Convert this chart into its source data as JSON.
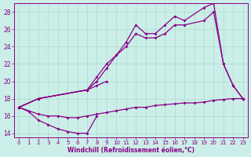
{
  "xlabel": "Windchill (Refroidissement éolien,°C)",
  "background_color": "#cceee8",
  "line_color": "#880088",
  "grid_color": "#aaddcc",
  "xlim": [
    -0.5,
    23.5
  ],
  "ylim": [
    13.5,
    29.0
  ],
  "xticks": [
    0,
    1,
    2,
    3,
    4,
    5,
    6,
    7,
    8,
    9,
    10,
    11,
    12,
    13,
    14,
    15,
    16,
    17,
    18,
    19,
    20,
    21,
    22,
    23
  ],
  "yticks": [
    14,
    16,
    18,
    20,
    22,
    24,
    26,
    28
  ],
  "series": [
    {
      "x": [
        0,
        1,
        2,
        3,
        4,
        5,
        6,
        7,
        8
      ],
      "y": [
        17,
        16.5,
        15.5,
        15,
        14.5,
        14.2,
        14,
        14,
        16
      ]
    },
    {
      "x": [
        0,
        2,
        3,
        4,
        5,
        6,
        7,
        8,
        9,
        10,
        11,
        12,
        13,
        14,
        15,
        16,
        17,
        18,
        19,
        20,
        21,
        22,
        23
      ],
      "y": [
        17,
        16.2,
        16,
        16,
        15.8,
        15.8,
        16,
        16.2,
        16.4,
        16.6,
        16.8,
        17,
        17,
        17.2,
        17.3,
        17.4,
        17.5,
        17.5,
        17.6,
        17.8,
        17.9,
        18,
        18
      ]
    },
    {
      "x": [
        0,
        2,
        7,
        8,
        9,
        10,
        11,
        12,
        13,
        14,
        15,
        16,
        17,
        19,
        20,
        21,
        22,
        23
      ],
      "y": [
        17,
        18,
        19,
        20.5,
        22,
        23,
        24.5,
        26.5,
        25.5,
        25.5,
        26.5,
        27.5,
        27,
        28.5,
        29,
        22,
        19.5,
        18
      ]
    },
    {
      "x": [
        0,
        2,
        7,
        8,
        9,
        10,
        11,
        12,
        13,
        14,
        15,
        16,
        17,
        19,
        20,
        21,
        22,
        23
      ],
      "y": [
        17,
        18,
        19,
        20,
        21.5,
        23,
        24,
        25.5,
        25,
        25,
        25.5,
        26.5,
        26.5,
        27,
        28,
        22,
        19.5,
        18
      ]
    },
    {
      "x": [
        0,
        2,
        7,
        8,
        9
      ],
      "y": [
        17,
        18,
        19,
        19.5,
        20
      ]
    }
  ]
}
